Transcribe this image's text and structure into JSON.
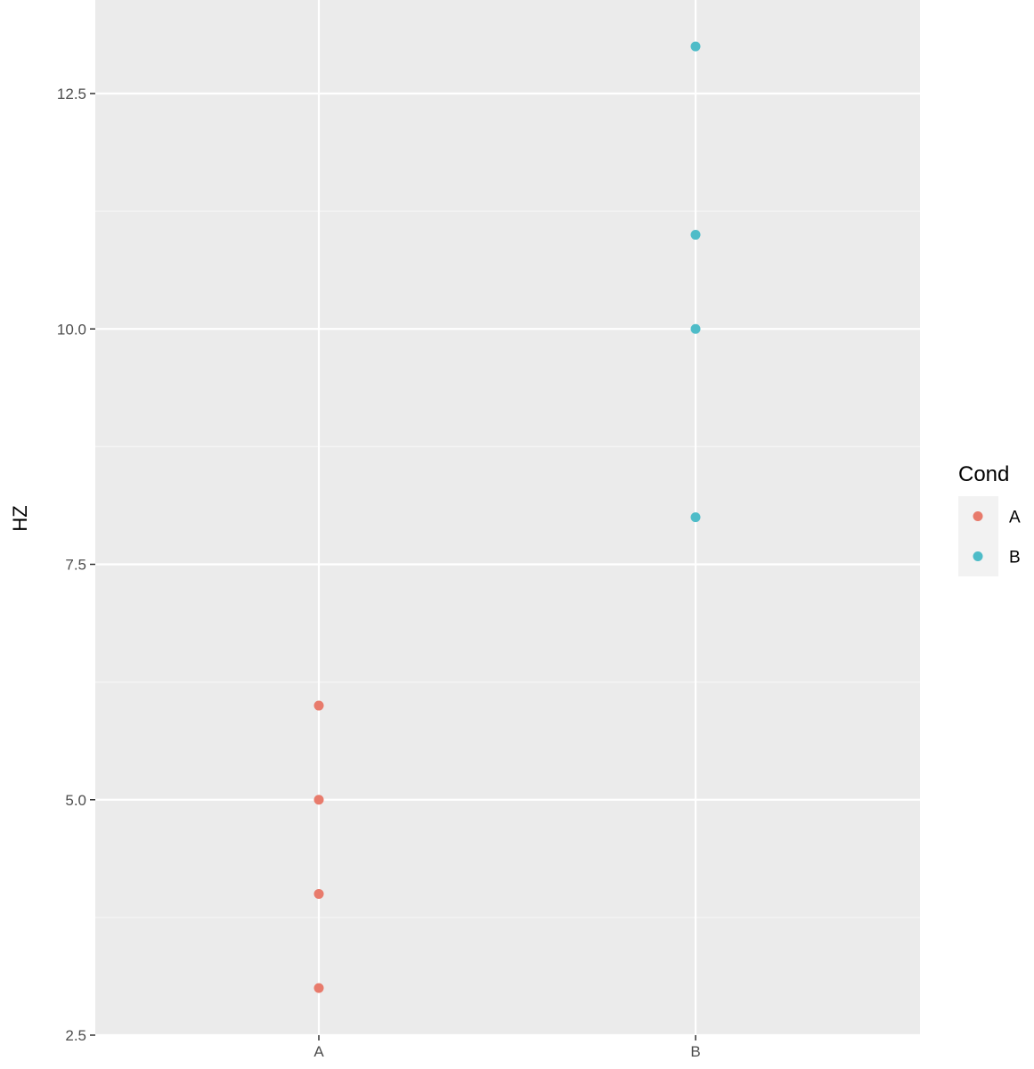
{
  "chart_data": {
    "type": "scatter",
    "categories": [
      "A",
      "B"
    ],
    "ylabel": "HZ",
    "xlabel": "",
    "ylim": [
      2.5,
      13.5
    ],
    "y_ticks": [
      "2.5",
      "5.0",
      "7.5",
      "10.0",
      "12.5"
    ],
    "y_tick_values": [
      2.5,
      5.0,
      7.5,
      10.0,
      12.5
    ],
    "grid": true,
    "legend": {
      "title": "Cond",
      "position": "right",
      "entries": [
        "A",
        "B"
      ]
    },
    "series": [
      {
        "name": "A",
        "color": "#F8766D",
        "x": [
          "A",
          "A",
          "A",
          "A"
        ],
        "values": [
          3,
          4,
          5,
          6
        ]
      },
      {
        "name": "B",
        "color": "#00BFC4",
        "x": [
          "B",
          "B",
          "B",
          "B"
        ],
        "values": [
          8,
          10,
          11,
          13
        ]
      }
    ],
    "colors": {
      "panel_background": "#EBEBEB",
      "grid_major": "#FFFFFF",
      "grid_minor": "#F5F5F5",
      "point_A": "#E87B6C",
      "point_B": "#4EBCC8"
    }
  }
}
